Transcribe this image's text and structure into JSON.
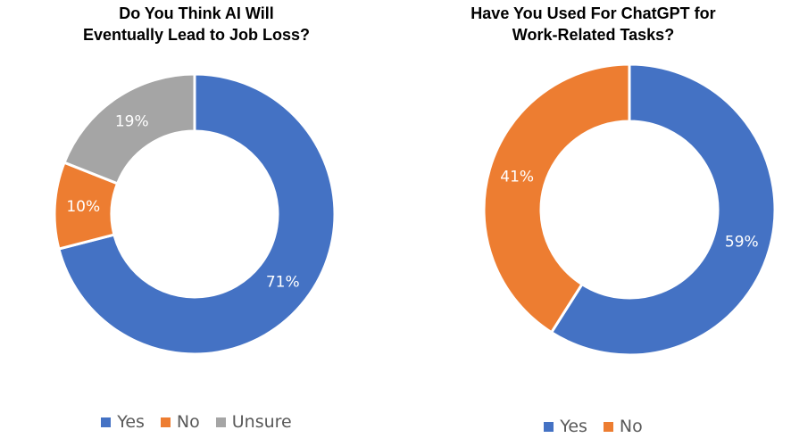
{
  "chart_data": [
    {
      "type": "pie",
      "donut": true,
      "title_lines": [
        "Do You Think AI Will",
        "Eventually Lead to Job Loss?"
      ],
      "categories": [
        "Yes",
        "No",
        "Unsure"
      ],
      "values": [
        71,
        10,
        19
      ],
      "labels": [
        "71%",
        "10%",
        "19%"
      ],
      "colors": [
        "#4472C4",
        "#ED7D31",
        "#A5A5A5"
      ],
      "legend_position": "bottom"
    },
    {
      "type": "pie",
      "donut": true,
      "title_lines": [
        "Have You Used For ChatGPT for",
        "Work-Related Tasks?"
      ],
      "categories": [
        "Yes",
        "No"
      ],
      "values": [
        59,
        41
      ],
      "labels": [
        "59%",
        "41%"
      ],
      "colors": [
        "#4472C4",
        "#ED7D31"
      ],
      "legend_position": "bottom"
    }
  ]
}
